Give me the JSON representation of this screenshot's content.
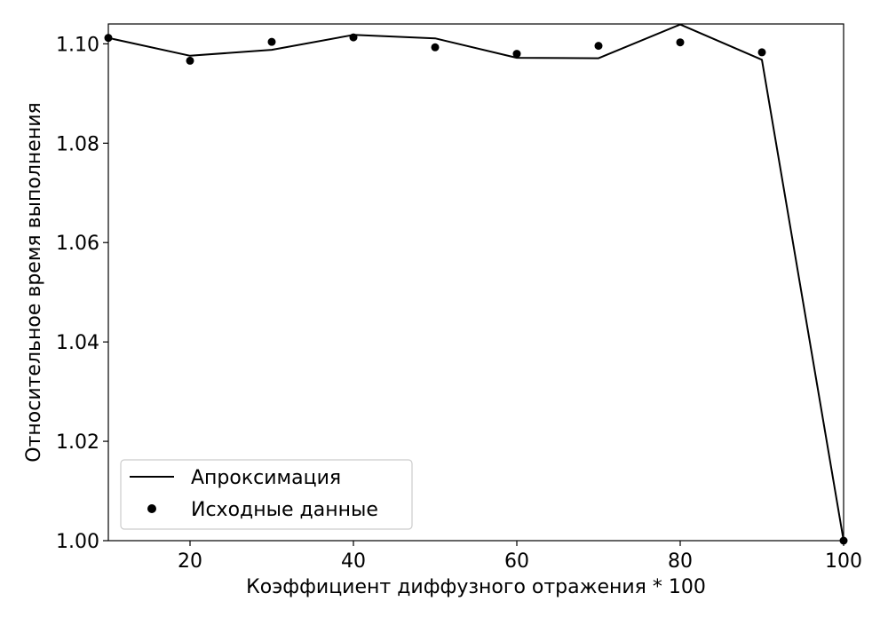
{
  "chart_data": {
    "type": "line",
    "title": "",
    "xlabel": "Коэффициент диффузного отражения * 100",
    "ylabel": "Относительное время выполнения",
    "xlim": [
      10,
      100
    ],
    "ylim": [
      1.0,
      1.104
    ],
    "xticks": [
      "20",
      "40",
      "60",
      "80",
      "100"
    ],
    "yticks": [
      "1.00",
      "1.02",
      "1.04",
      "1.06",
      "1.08",
      "1.10"
    ],
    "grid": false,
    "legend_position": "lower-left",
    "series": [
      {
        "name": "Апроксимация",
        "style": "line",
        "color": "#000000",
        "x": [
          10,
          20,
          30,
          40,
          50,
          60,
          70,
          80,
          90,
          100
        ],
        "y": [
          1.1012,
          1.0976,
          1.0988,
          1.1018,
          1.1011,
          1.0972,
          1.0971,
          1.1039,
          1.0968,
          1.0
        ]
      },
      {
        "name": "Исходные данные",
        "style": "points",
        "color": "#000000",
        "x": [
          10,
          20,
          30,
          40,
          50,
          60,
          70,
          80,
          90,
          100
        ],
        "y": [
          1.1012,
          1.0966,
          1.1004,
          1.1013,
          1.0993,
          1.098,
          1.0996,
          1.1003,
          1.0983,
          1.0
        ]
      }
    ]
  }
}
